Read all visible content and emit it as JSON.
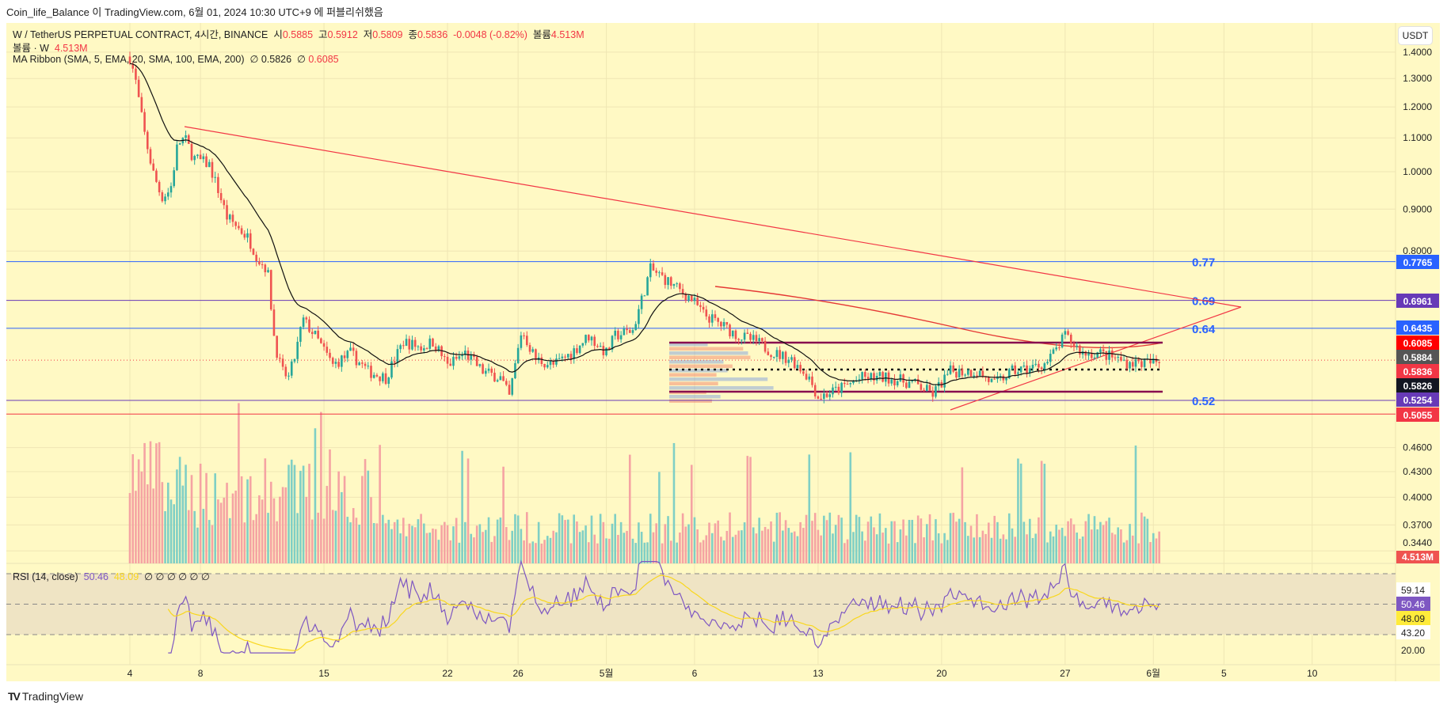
{
  "publish_line": "Coin_life_Balance 이 TradingView.com, 6월 01, 2024 10:30 UTC+9 에 퍼블리쉬했음",
  "legend": {
    "symbol": "W / TetherUS PERPETUAL CONTRACT, 4시간, BINANCE",
    "o_label": "시",
    "o": "0.5885",
    "h_label": "고",
    "h": "0.5912",
    "l_label": "저",
    "l": "0.5809",
    "c_label": "종",
    "c": "0.5836",
    "change": "-0.0048 (-0.82%)",
    "vol_label": "볼륨",
    "vol": "4.513M",
    "volume_line_label": "볼륨 · W",
    "volume_line_value": "4.513M",
    "ma_label": "MA Ribbon (SMA, 5, EMA, 20, SMA, 100, EMA, 200)",
    "ma_sep": "∅",
    "ma_v1": "0.5826",
    "ma_v2": "0.6085",
    "rsi_label": "RSI (14, close)",
    "rsi_v1": "50.46",
    "rsi_v2": "48.09",
    "rsi_empty": "∅ ∅ ∅ ∅ ∅ ∅"
  },
  "currency_button": "USDT",
  "brand": "TradingView",
  "colors": {
    "up": "#26a69a",
    "down": "#ef5350",
    "bg": "#fff9c4",
    "trend": "#f23645",
    "fib_blue": "#2962ff",
    "box": "#880e4f"
  },
  "chart_data": {
    "type": "candlestick",
    "scale": "log",
    "interval": "4h",
    "price_ticks": [
      "1.4000",
      "1.3000",
      "1.2000",
      "1.1000",
      "1.0000",
      "0.9000",
      "0.8000",
      "0.4600",
      "0.4300",
      "0.4000",
      "0.3700",
      "0.3440"
    ],
    "price_tick_values": [
      1.4,
      1.3,
      1.2,
      1.1,
      1.0,
      0.9,
      0.8,
      0.46,
      0.43,
      0.4,
      0.37,
      0.344
    ],
    "x_ticks": [
      {
        "label": "4",
        "day": 0
      },
      {
        "label": "8",
        "day": 4
      },
      {
        "label": "15",
        "day": 11
      },
      {
        "label": "22",
        "day": 18
      },
      {
        "label": "26",
        "day": 22
      },
      {
        "label": "5월",
        "day": 27
      },
      {
        "label": "6",
        "day": 32
      },
      {
        "label": "13",
        "day": 39
      },
      {
        "label": "20",
        "day": 46
      },
      {
        "label": "27",
        "day": 53
      },
      {
        "label": "6월",
        "day": 58
      },
      {
        "label": "5",
        "day": 62
      },
      {
        "label": "10",
        "day": 67
      }
    ],
    "close_keypoints_day_price": [
      [
        0,
        1.38
      ],
      [
        0.3,
        1.3
      ],
      [
        0.8,
        1.12
      ],
      [
        1.3,
        1.0
      ],
      [
        1.8,
        0.93
      ],
      [
        2.3,
        0.95
      ],
      [
        2.7,
        1.08
      ],
      [
        3.1,
        1.1
      ],
      [
        3.6,
        1.04
      ],
      [
        4.5,
        1.02
      ],
      [
        5,
        0.95
      ],
      [
        5.5,
        0.88
      ],
      [
        6,
        0.86
      ],
      [
        6.7,
        0.83
      ],
      [
        7.3,
        0.78
      ],
      [
        7.8,
        0.76
      ],
      [
        8.2,
        0.62
      ],
      [
        8.6,
        0.57
      ],
      [
        9,
        0.56
      ],
      [
        9.4,
        0.6
      ],
      [
        9.8,
        0.66
      ],
      [
        10.5,
        0.63
      ],
      [
        11.5,
        0.58
      ],
      [
        12.5,
        0.6
      ],
      [
        13.5,
        0.57
      ],
      [
        14.5,
        0.56
      ],
      [
        15.5,
        0.62
      ],
      [
        16.5,
        0.61
      ],
      [
        17.2,
        0.62
      ],
      [
        18,
        0.58
      ],
      [
        19,
        0.6
      ],
      [
        20,
        0.57
      ],
      [
        21,
        0.56
      ],
      [
        21.5,
        0.53
      ],
      [
        22.2,
        0.64
      ],
      [
        23,
        0.59
      ],
      [
        24,
        0.58
      ],
      [
        25,
        0.6
      ],
      [
        26,
        0.63
      ],
      [
        27,
        0.6
      ],
      [
        27.5,
        0.63
      ],
      [
        28.5,
        0.64
      ],
      [
        29.5,
        0.76
      ],
      [
        30.3,
        0.74
      ],
      [
        31,
        0.72
      ],
      [
        31.8,
        0.7
      ],
      [
        32.5,
        0.67
      ],
      [
        33.5,
        0.65
      ],
      [
        34.5,
        0.63
      ],
      [
        35.5,
        0.62
      ],
      [
        36.5,
        0.6
      ],
      [
        37.5,
        0.59
      ],
      [
        38.5,
        0.56
      ],
      [
        39,
        0.53
      ],
      [
        40,
        0.54
      ],
      [
        41.5,
        0.56
      ],
      [
        43,
        0.56
      ],
      [
        44.5,
        0.55
      ],
      [
        45.5,
        0.535
      ],
      [
        46.5,
        0.57
      ],
      [
        48,
        0.57
      ],
      [
        49,
        0.55
      ],
      [
        50,
        0.57
      ],
      [
        51,
        0.575
      ],
      [
        52,
        0.585
      ],
      [
        53,
        0.63
      ],
      [
        54,
        0.6
      ],
      [
        55,
        0.6
      ],
      [
        56.5,
        0.585
      ],
      [
        58.4,
        0.5836
      ]
    ],
    "horizontal_levels": [
      {
        "price": 0.7765,
        "label": "0.7765",
        "fib": "0.77",
        "color": "#2962ff"
      },
      {
        "price": 0.6961,
        "label": "0.6961",
        "fib": "0.69",
        "color": "#673ab7"
      },
      {
        "price": 0.6435,
        "label": "0.6435",
        "fib": "0.64",
        "color": "#2962ff"
      },
      {
        "price": 0.5254,
        "label": "0.5254",
        "fib": "0.52",
        "color": "#673ab7"
      },
      {
        "price": 0.5055,
        "label": "0.5055",
        "fib": "",
        "color": "#f23645"
      }
    ],
    "price_badges": [
      {
        "price": 0.6085,
        "label": "0.6085",
        "color": "#ff0000"
      },
      {
        "price": 0.5884,
        "label": "0.5884",
        "color": "#555555"
      },
      {
        "price": 0.5836,
        "label": "0.5836",
        "color": "#f23645"
      },
      {
        "price": 0.5826,
        "label": "0.5826",
        "color": "#131722"
      }
    ],
    "volume_badge": "4.513M",
    "rsi": {
      "levels": [
        70,
        50,
        30
      ],
      "ticks": [
        {
          "label": "59.14",
          "v": 59.14,
          "bg": "#fff",
          "fg": "#222"
        },
        {
          "label": "50.46",
          "v": 50.46,
          "bg": "#7e57c2",
          "fg": "#fff"
        },
        {
          "label": "48.09",
          "v": 48.09,
          "bg": "#ffeb3b",
          "fg": "#222"
        },
        {
          "label": "43.20",
          "v": 43.2,
          "bg": "#fff",
          "fg": "#222"
        },
        {
          "label": "20.00",
          "v": 20,
          "bg": "none",
          "fg": "#222"
        }
      ],
      "last": 50.46,
      "ma_last": 48.09
    }
  }
}
